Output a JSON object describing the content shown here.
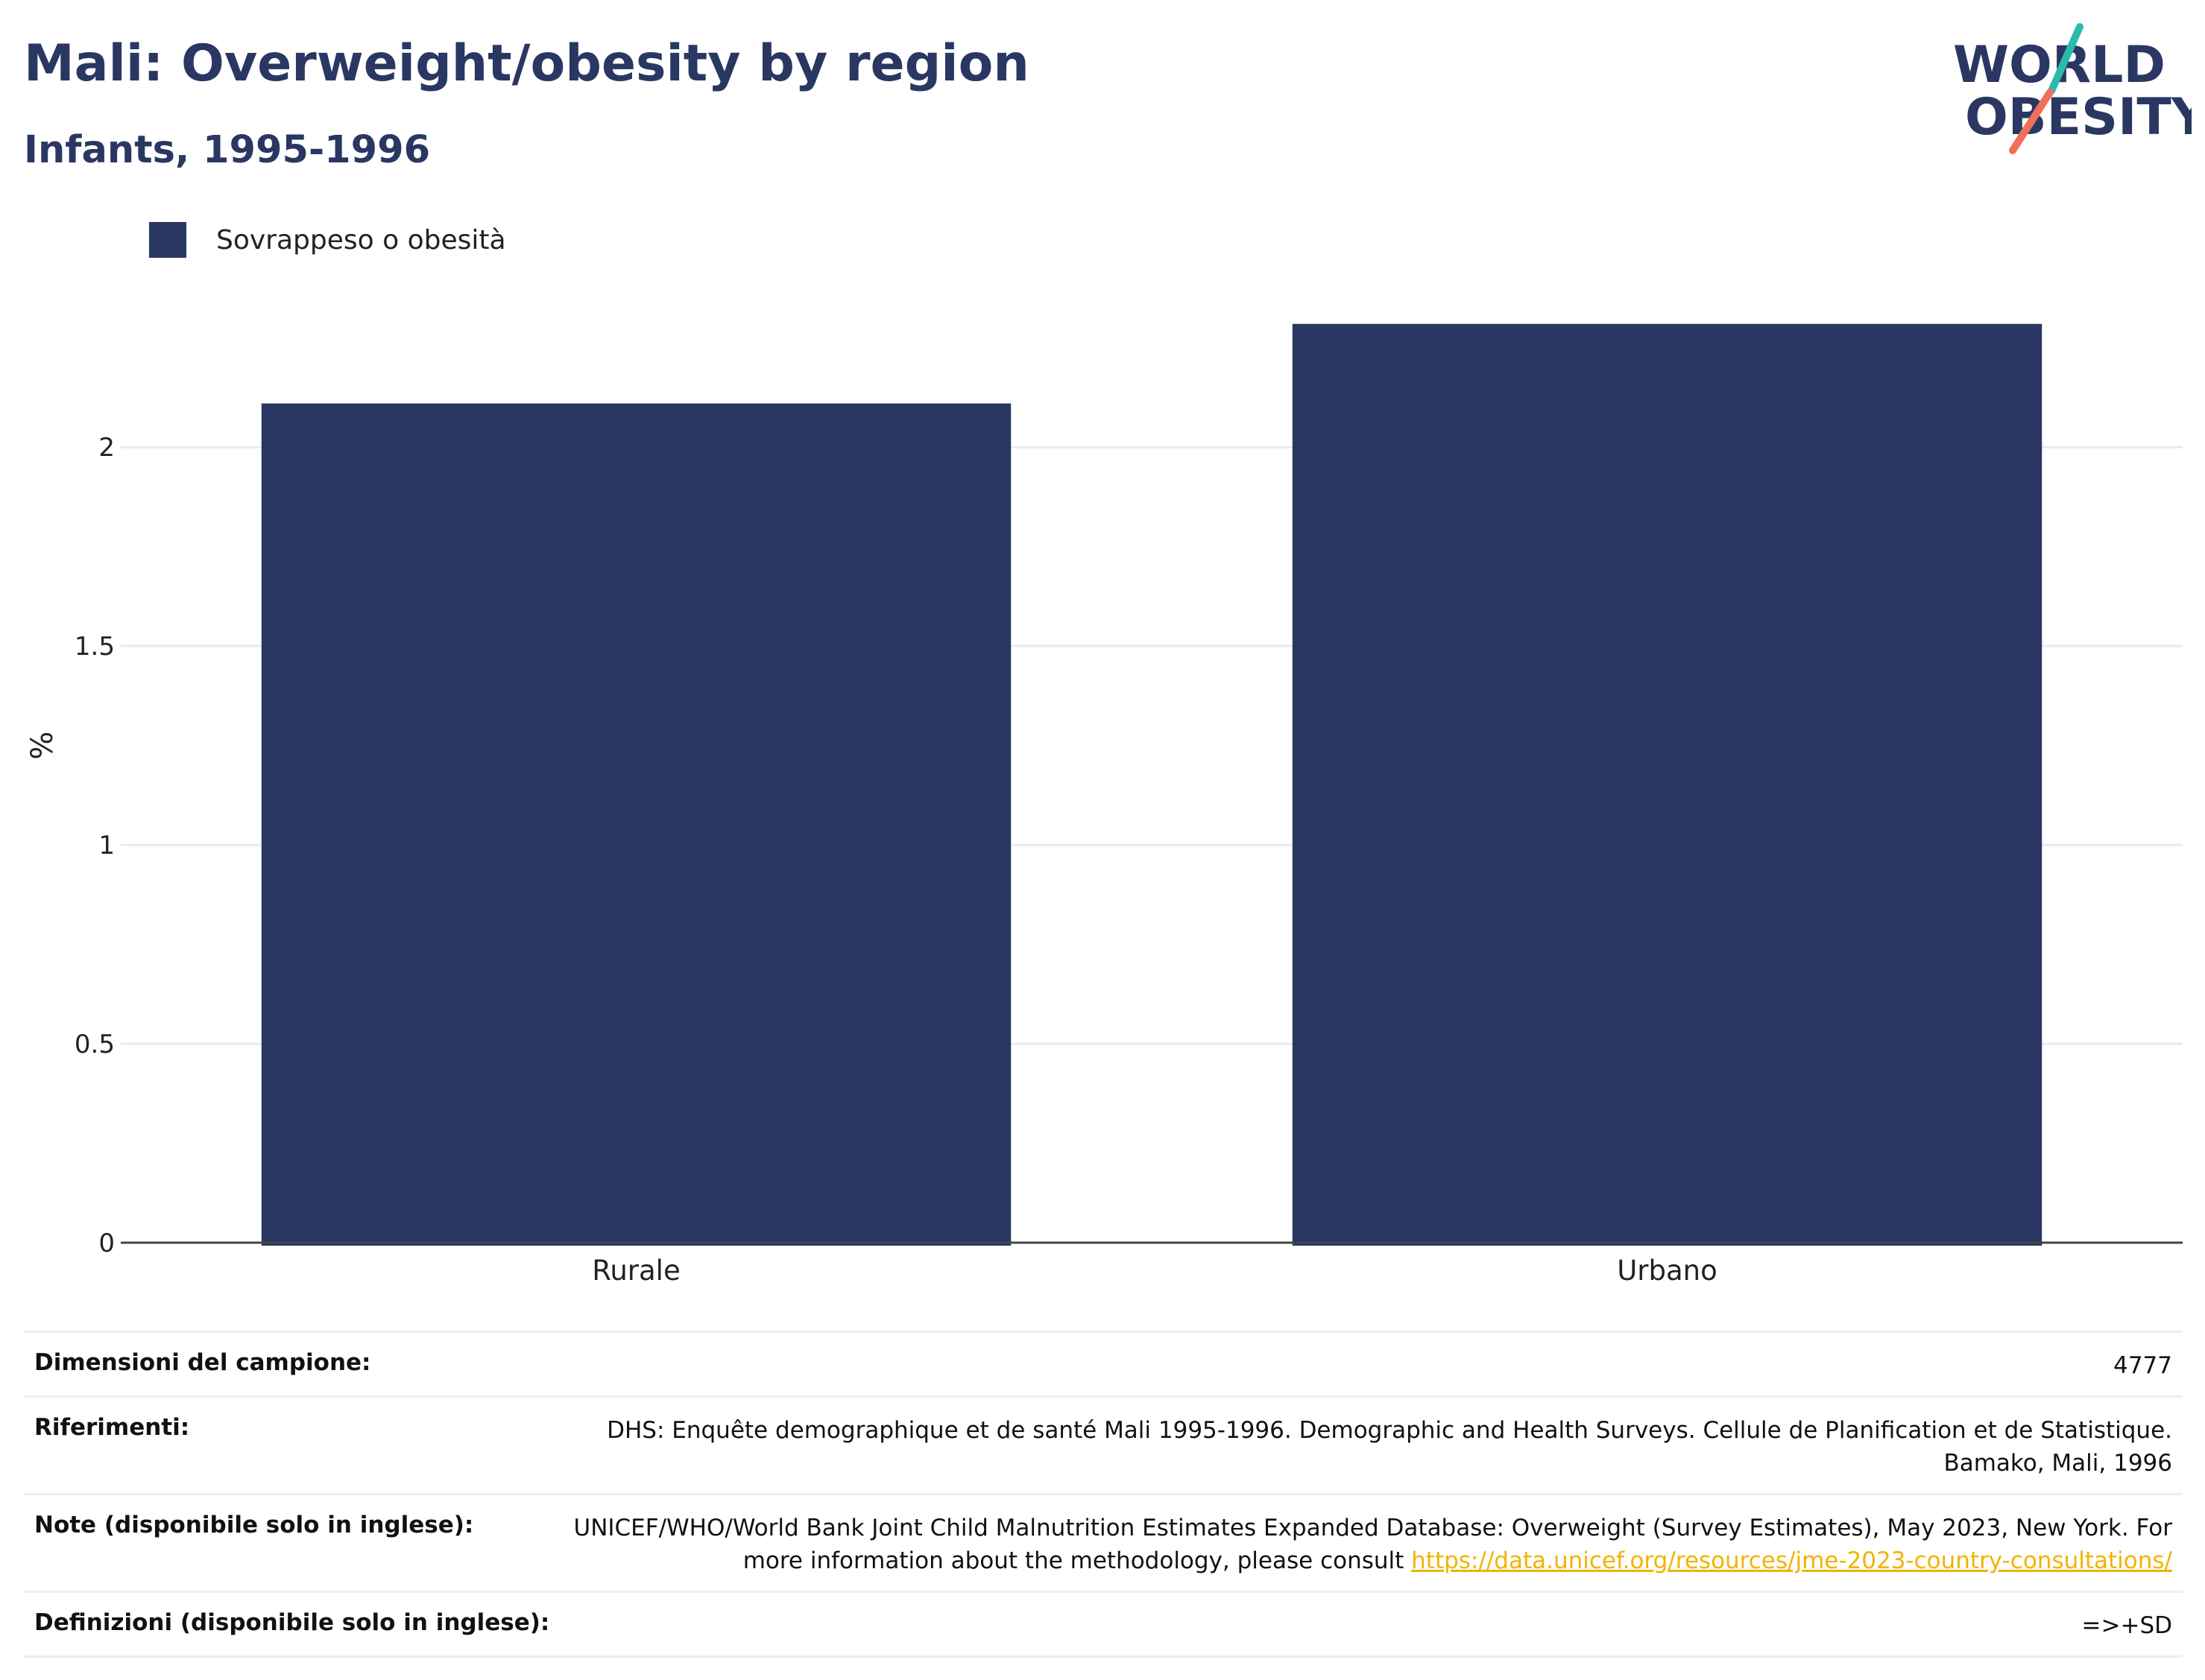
{
  "header": {
    "title": "Mali: Overweight/obesity by region",
    "subtitle": "Infants, 1995-1996"
  },
  "logo": {
    "line1": "WORLD",
    "line2": "OBESITY",
    "accent_colors": [
      "#2bbbad",
      "#ef6f5a"
    ]
  },
  "chart_data": {
    "type": "bar",
    "categories": [
      "Rurale",
      "Urbano"
    ],
    "series": [
      {
        "name": "Sovrappeso o obesità",
        "values": [
          2.11,
          2.31
        ],
        "color": "#2a3762"
      }
    ],
    "ylabel": "%",
    "xlabel": "",
    "ylim": [
      0,
      2.45
    ],
    "yticks": [
      0,
      0.5,
      1,
      1.5,
      2
    ],
    "ytick_labels": [
      "0",
      "0.5",
      "1",
      "1.5",
      "2"
    ],
    "grid": true,
    "legend_position": "top-left"
  },
  "info": {
    "sample_size": {
      "label": "Dimensioni del campione:",
      "value": "4777"
    },
    "references": {
      "label": "Riferimenti:",
      "value": "DHS: Enquête demographique et de santé Mali 1995-1996. Demographic and Health Surveys. Cellule de Planification et de Statistique. Bamako, Mali, 1996"
    },
    "notes": {
      "label": "Note (disponibile solo in inglese):",
      "value": "UNICEF/WHO/World Bank Joint Child Malnutrition Estimates Expanded Database: Overweight (Survey Estimates), May 2023, New York. For more information about the methodology, please consult",
      "link": "https://data.unicef.org/resources/jme-2023-country-consultations/"
    },
    "definitions": {
      "label": "Definizioni (disponibile solo in inglese):",
      "value": "=>+SD"
    }
  }
}
